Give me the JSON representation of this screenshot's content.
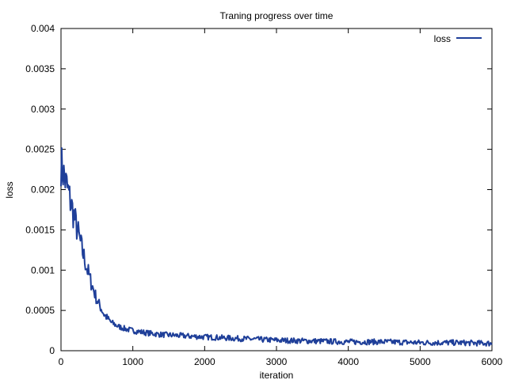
{
  "chart_data": {
    "type": "line",
    "title": "Traning progress over time",
    "xlabel": "iteration",
    "ylabel": "loss",
    "xlim": [
      0,
      6000
    ],
    "ylim": [
      0,
      0.004
    ],
    "x_ticks": [
      0,
      1000,
      2000,
      3000,
      4000,
      5000,
      6000
    ],
    "x_tick_labels": [
      "0",
      "1000",
      "2000",
      "3000",
      "4000",
      "5000",
      "6000"
    ],
    "y_ticks": [
      0,
      0.0005,
      0.001,
      0.0015,
      0.002,
      0.0025,
      0.003,
      0.0035,
      0.004
    ],
    "y_tick_labels": [
      "0",
      "0.0005",
      "0.001",
      "0.0015",
      "0.002",
      "0.0025",
      "0.003",
      "0.0035",
      "0.004"
    ],
    "grid": false,
    "legend_position": "top-right",
    "series": [
      {
        "name": "loss",
        "color": "#1f3f99",
        "x": [
          0,
          100,
          200,
          300,
          400,
          500,
          600,
          700,
          800,
          900,
          1000,
          1200,
          1400,
          1600,
          1800,
          2000,
          2500,
          3000,
          3500,
          4000,
          4500,
          5000,
          5500,
          6000
        ],
        "y": [
          0.00232,
          0.00197,
          0.0016,
          0.00123,
          0.0009,
          0.00063,
          0.00045,
          0.00035,
          0.0003,
          0.00027,
          0.00025,
          0.00022,
          0.0002,
          0.00019,
          0.00018,
          0.00017,
          0.00015,
          0.00013,
          0.00012,
          0.00011,
          0.00011,
          0.0001,
          0.0001,
          9e-05
        ]
      }
    ]
  }
}
